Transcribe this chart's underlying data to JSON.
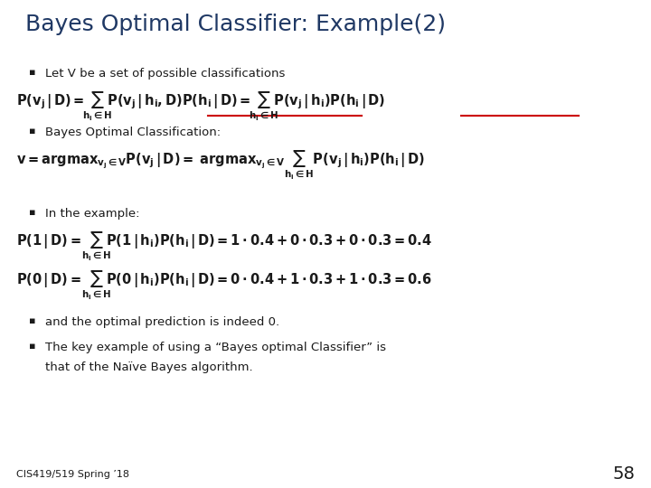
{
  "title": "Bayes Optimal Classifier: Example(2)",
  "title_color": "#1F3864",
  "title_fontsize": 18,
  "bg_color": "#FFFFFF",
  "text_color": "#1a1a1a",
  "red_color": "#CC0000",
  "slide_number": "58",
  "footer": "CIS419/519 Spring ’18",
  "bullet1": "Let V be a set of possible classifications",
  "bullet2": "Bayes Optimal Classification:",
  "bullet3": "In the example:",
  "bullet4": "and the optimal prediction is indeed 0.",
  "bullet5_line1": "The key example of using a “Bayes optimal Classifier” is",
  "bullet5_line2": "that of the Naïve Bayes algorithm.",
  "bullet_fs": 9.5,
  "formula_fs": 9.5
}
